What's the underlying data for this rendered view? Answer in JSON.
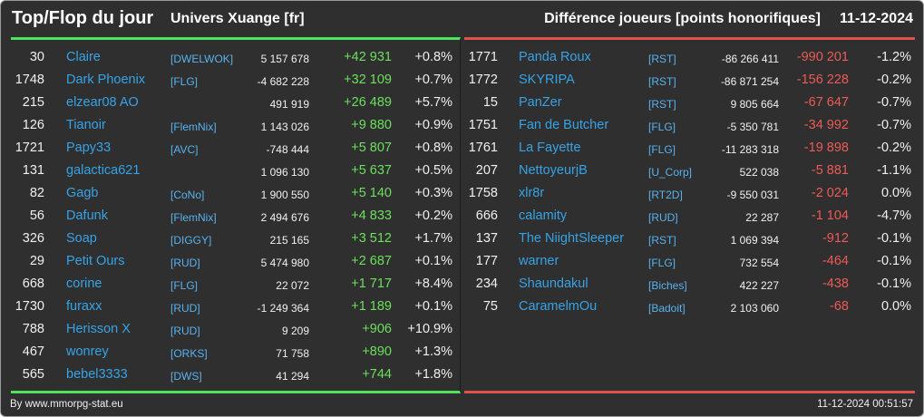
{
  "header": {
    "title": "Top/Flop du jour",
    "universe": "Univers Xuange [fr]",
    "metric": "Différence joueurs [points honorifiques]",
    "date": "11-12-2024"
  },
  "colors": {
    "top_accent": "#4ee35a",
    "flop_accent": "#e0504d",
    "name": "#36a3e6",
    "background": "#2f2f2f"
  },
  "top": [
    {
      "rank": "30",
      "name": "Claire",
      "guild": "[DWELWOK]",
      "total": "5 157 678",
      "diff": "+42 931",
      "pct": "+0.8%"
    },
    {
      "rank": "1748",
      "name": "Dark Phoenix",
      "guild": "[FLG]",
      "total": "-4 682 228",
      "diff": "+32 109",
      "pct": "+0.7%"
    },
    {
      "rank": "215",
      "name": "elzear08 AO",
      "guild": "",
      "total": "491 919",
      "diff": "+26 489",
      "pct": "+5.7%"
    },
    {
      "rank": "126",
      "name": "Tianoir",
      "guild": "[FlemNix]",
      "total": "1 143 026",
      "diff": "+9 880",
      "pct": "+0.9%"
    },
    {
      "rank": "1721",
      "name": "Papy33",
      "guild": "[AVC]",
      "total": "-748 444",
      "diff": "+5 807",
      "pct": "+0.8%"
    },
    {
      "rank": "131",
      "name": "galactica621",
      "guild": "",
      "total": "1 096 130",
      "diff": "+5 637",
      "pct": "+0.5%"
    },
    {
      "rank": "82",
      "name": "Gagb",
      "guild": "[CoNo]",
      "total": "1 900 550",
      "diff": "+5 140",
      "pct": "+0.3%"
    },
    {
      "rank": "56",
      "name": "Dafunk",
      "guild": "[FlemNix]",
      "total": "2 494 676",
      "diff": "+4 833",
      "pct": "+0.2%"
    },
    {
      "rank": "326",
      "name": "Soap",
      "guild": "[DIGGY]",
      "total": "215 165",
      "diff": "+3 512",
      "pct": "+1.7%"
    },
    {
      "rank": "29",
      "name": "Petit Ours",
      "guild": "[RUD]",
      "total": "5 474 980",
      "diff": "+2 687",
      "pct": "+0.1%"
    },
    {
      "rank": "668",
      "name": "corine",
      "guild": "[FLG]",
      "total": "22 072",
      "diff": "+1 717",
      "pct": "+8.4%"
    },
    {
      "rank": "1730",
      "name": "furaxx",
      "guild": "[RUD]",
      "total": "-1 249 364",
      "diff": "+1 189",
      "pct": "+0.1%"
    },
    {
      "rank": "788",
      "name": "Herisson X",
      "guild": "[RUD]",
      "total": "9 209",
      "diff": "+906",
      "pct": "+10.9%"
    },
    {
      "rank": "467",
      "name": "wonrey",
      "guild": "[ORKS]",
      "total": "71 758",
      "diff": "+890",
      "pct": "+1.3%"
    },
    {
      "rank": "565",
      "name": "bebel3333",
      "guild": "[DWS]",
      "total": "41 294",
      "diff": "+744",
      "pct": "+1.8%"
    }
  ],
  "flop": [
    {
      "rank": "1771",
      "name": "Panda Roux",
      "guild": "[RST]",
      "total": "-86 266 411",
      "diff": "-990 201",
      "pct": "-1.2%"
    },
    {
      "rank": "1772",
      "name": "SKYRIPA",
      "guild": "[RST]",
      "total": "-86 871 254",
      "diff": "-156 228",
      "pct": "-0.2%"
    },
    {
      "rank": "15",
      "name": "PanZer",
      "guild": "[RST]",
      "total": "9 805 664",
      "diff": "-67 647",
      "pct": "-0.7%"
    },
    {
      "rank": "1751",
      "name": "Fan de Butcher",
      "guild": "[FLG]",
      "total": "-5 350 781",
      "diff": "-34 992",
      "pct": "-0.7%"
    },
    {
      "rank": "1761",
      "name": "La Fayette",
      "guild": "[FLG]",
      "total": "-11 283 318",
      "diff": "-19 898",
      "pct": "-0.2%"
    },
    {
      "rank": "207",
      "name": "NettoyeurjB",
      "guild": "[U_Corp]",
      "total": "522 038",
      "diff": "-5 881",
      "pct": "-1.1%"
    },
    {
      "rank": "1758",
      "name": "xlr8r",
      "guild": "[RT2D]",
      "total": "-9 550 031",
      "diff": "-2 024",
      "pct": "0.0%"
    },
    {
      "rank": "666",
      "name": "calamity",
      "guild": "[RUD]",
      "total": "22 287",
      "diff": "-1 104",
      "pct": "-4.7%"
    },
    {
      "rank": "137",
      "name": "The NiightSleeper",
      "guild": "[RST]",
      "total": "1 069 394",
      "diff": "-912",
      "pct": "-0.1%"
    },
    {
      "rank": "177",
      "name": "warner",
      "guild": "[FLG]",
      "total": "732 554",
      "diff": "-464",
      "pct": "-0.1%"
    },
    {
      "rank": "234",
      "name": "Shaundakul",
      "guild": "[Biches]",
      "total": "422 227",
      "diff": "-438",
      "pct": "-0.1%"
    },
    {
      "rank": "75",
      "name": "CaramelmOu",
      "guild": "[Badoit]",
      "total": "2 103 060",
      "diff": "-68",
      "pct": "0.0%"
    }
  ],
  "footer": {
    "source": "By www.mmorpg-stat.eu",
    "timestamp": "11-12-2024 00:51:57"
  }
}
